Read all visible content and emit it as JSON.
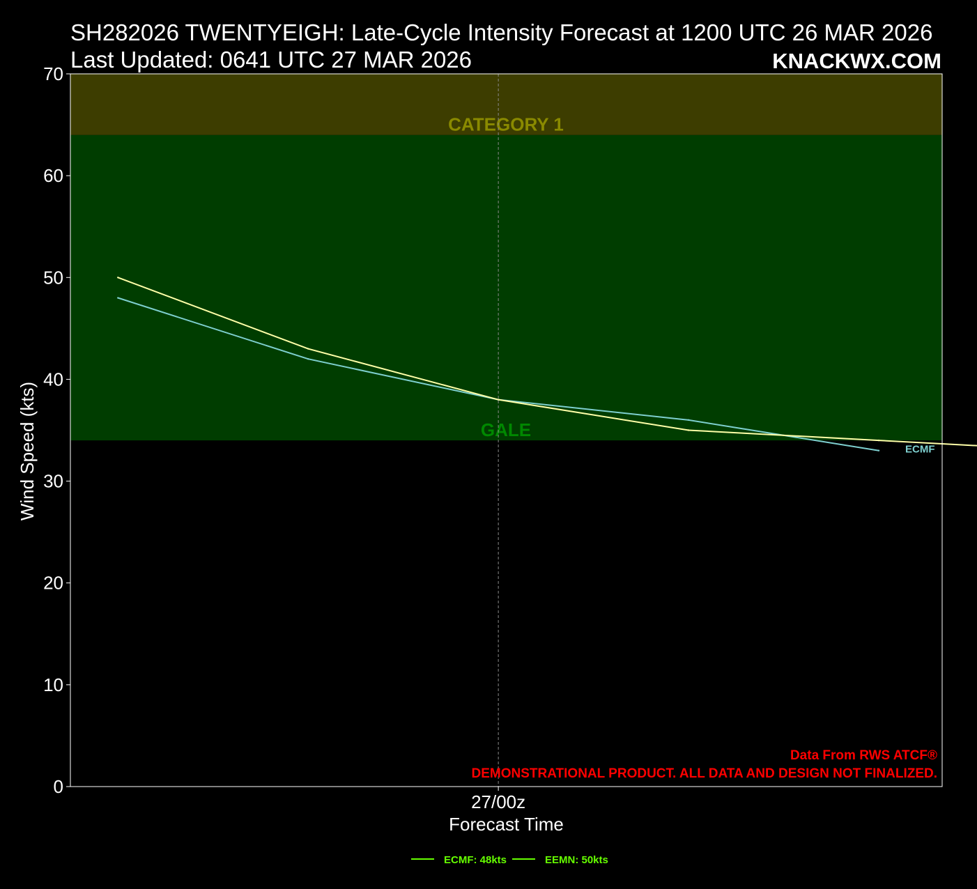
{
  "header": {
    "title": "SH282026 TWENTYEIGH: Late-Cycle Intensity Forecast at 1200 UTC 26 MAR 2026",
    "subtitle": "Last Updated: 0641 UTC 27 MAR 2026",
    "brand": "KNACKWX.COM"
  },
  "credits": {
    "source": "Data From RWS ATCF®",
    "disclaimer": "DEMONSTRATIONAL PRODUCT. ALL DATA AND DESIGN NOT FINALIZED."
  },
  "chart_data": {
    "type": "line",
    "xlabel": "Forecast Time",
    "ylabel": "Wind Speed (kts)",
    "ylim": [
      0,
      70
    ],
    "xlim": [
      -27,
      28
    ],
    "x_unit": "hours from 27/00z",
    "yticks": [
      0,
      10,
      20,
      30,
      40,
      50,
      60,
      70
    ],
    "xticks": [
      {
        "x": 0,
        "label": "27/00z"
      }
    ],
    "grid": false,
    "x": [
      -24,
      -12,
      0,
      12,
      24,
      36
    ],
    "bands": [
      {
        "label": "GALE",
        "from": 34,
        "to": 64,
        "color": "#003d00",
        "label_color": "#008800"
      },
      {
        "label": "CATEGORY 1",
        "from": 64,
        "to": 70,
        "color": "#3d3d00",
        "label_color": "#8a8a00"
      }
    ],
    "series": [
      {
        "name": "ECMF",
        "color": "#7ecfcf",
        "values": [
          48,
          42,
          38,
          36,
          33,
          null
        ],
        "legend": "ECMF: 48kts"
      },
      {
        "name": "EEMN",
        "color": "#ffffa8",
        "values": [
          50,
          43,
          38,
          35,
          34,
          33
        ],
        "legend": "EEMN: 50kts"
      }
    ],
    "legend_position": "bottom-center",
    "legend_color": "#66ff00"
  }
}
